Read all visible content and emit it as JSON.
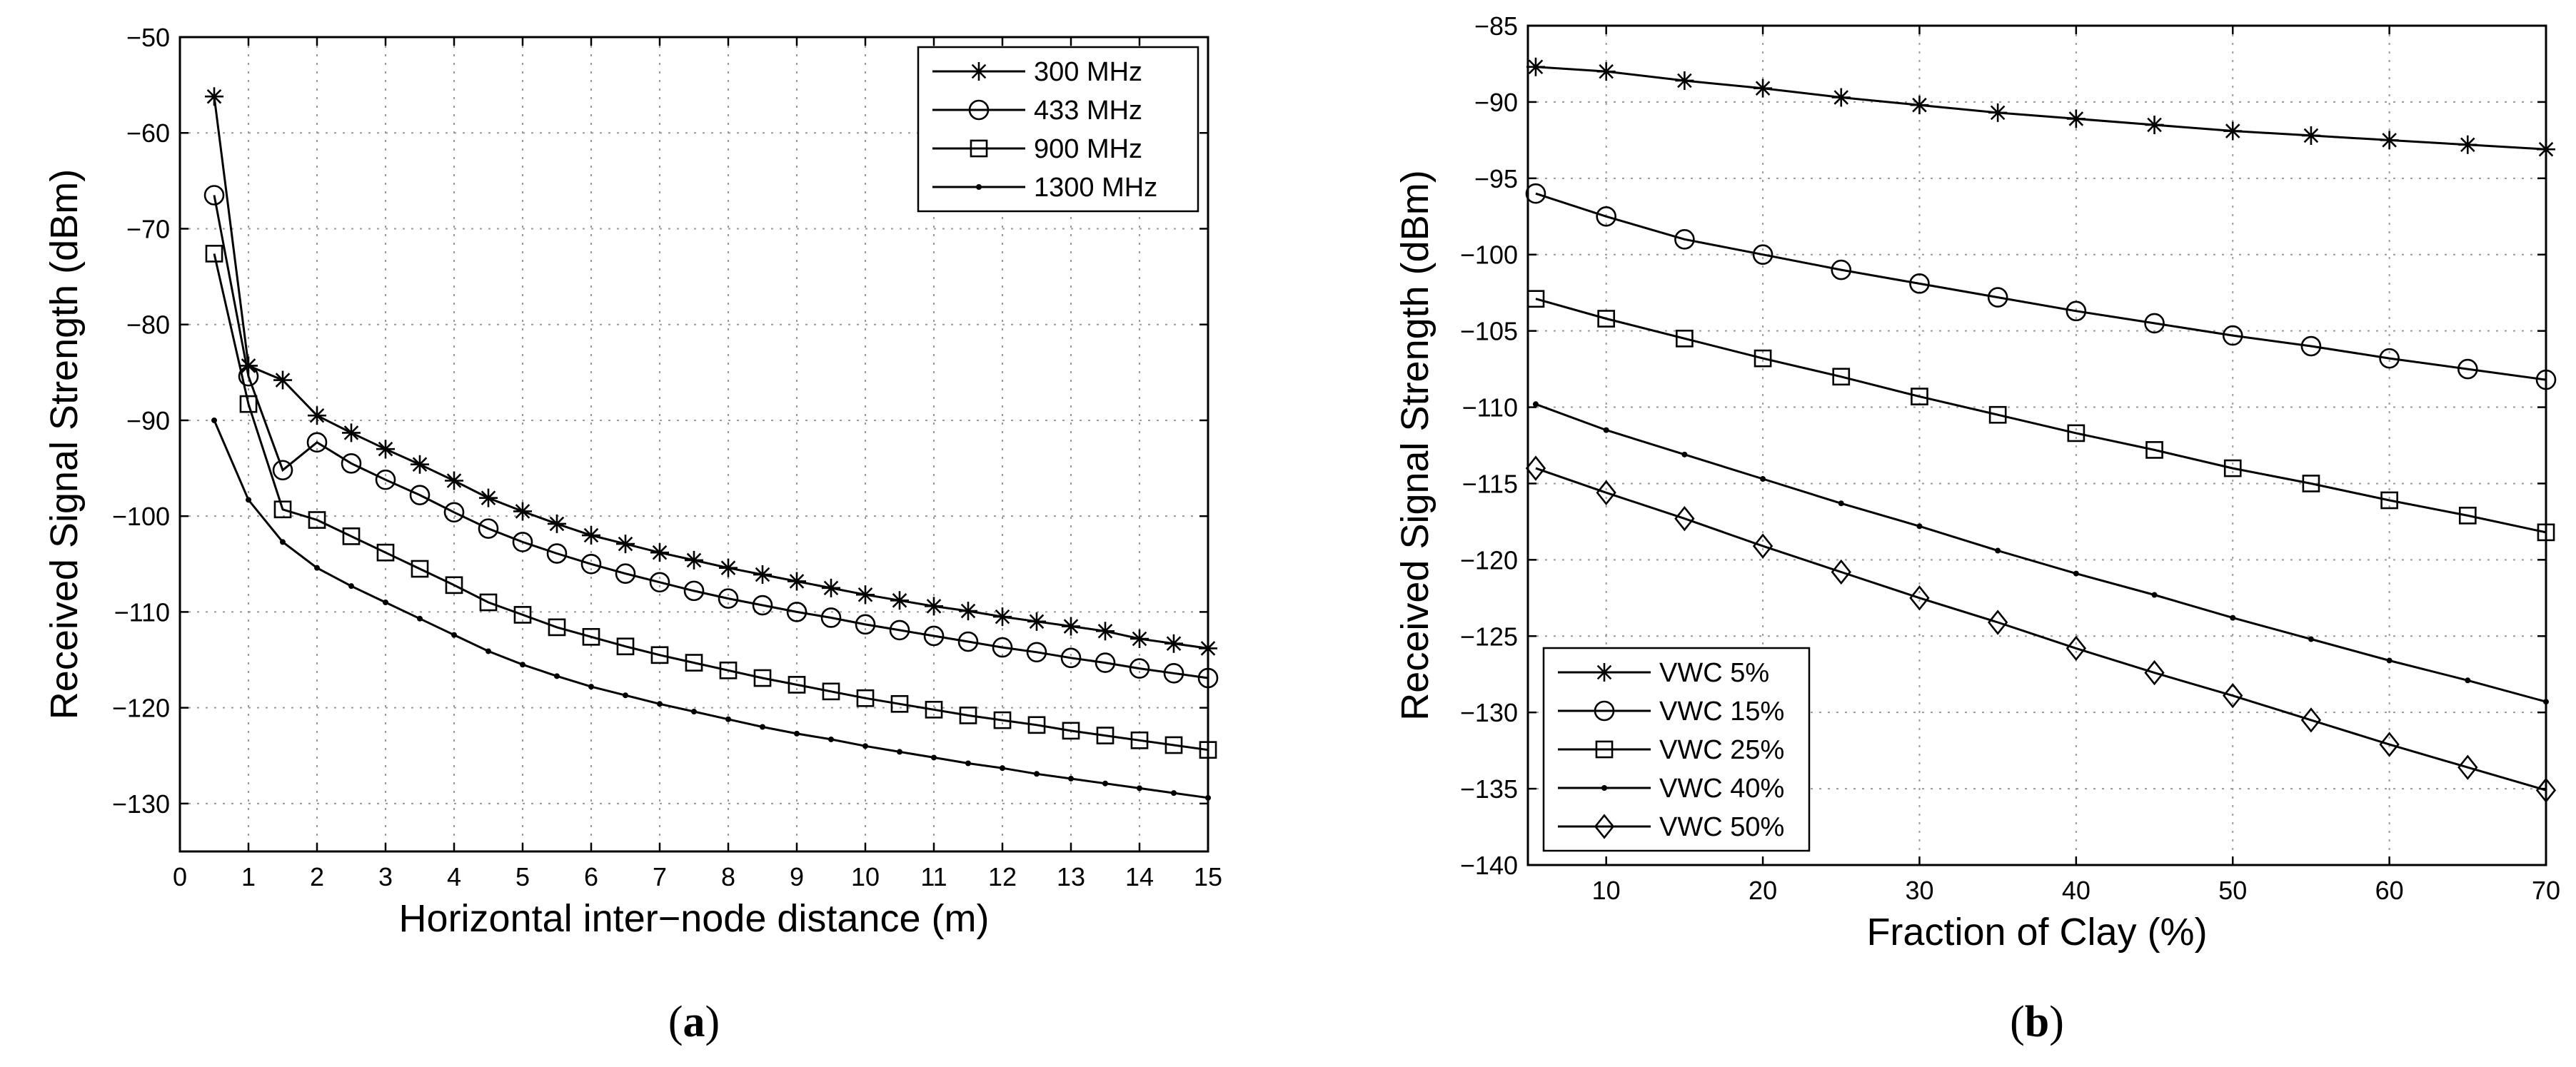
{
  "chart_data": [
    {
      "type": "line",
      "panel": "a",
      "caption_letter": "a",
      "title": "",
      "xlabel": "Horizontal inter−node distance (m)",
      "ylabel": "Received Signal Strength (dBm)",
      "xlim": [
        0,
        15
      ],
      "ylim": [
        -135,
        -50
      ],
      "grid": true,
      "legend_position": "top-right",
      "xticks": [
        0,
        1,
        2,
        3,
        4,
        5,
        6,
        7,
        8,
        9,
        10,
        11,
        12,
        13,
        14,
        15
      ],
      "xtick_labels": [
        "0",
        "1",
        "2",
        "3",
        "4",
        "5",
        "6",
        "7",
        "8",
        "9",
        "10",
        "11",
        "12",
        "13",
        "14",
        "15"
      ],
      "yticks": [
        -50,
        -60,
        -70,
        -80,
        -90,
        -100,
        -110,
        -120,
        -130
      ],
      "ytick_labels": [
        "−50",
        "−60",
        "−70",
        "−80",
        "−90",
        "−100",
        "−110",
        "−120",
        "−130"
      ],
      "x": [
        0.5,
        1,
        1.5,
        2,
        2.5,
        3,
        3.5,
        4,
        4.5,
        5,
        5.5,
        6,
        6.5,
        7,
        7.5,
        8,
        8.5,
        9,
        9.5,
        10,
        10.5,
        11,
        11.5,
        12,
        12.5,
        13,
        13.5,
        14,
        14.5,
        15
      ],
      "series": [
        {
          "name": "300 MHz",
          "marker": "star",
          "values": [
            -56.2,
            -84.3,
            -85.8,
            -89.5,
            -91.3,
            -93.0,
            -94.6,
            -96.3,
            -98.1,
            -99.5,
            -100.8,
            -102.0,
            -102.9,
            -103.8,
            -104.6,
            -105.4,
            -106.1,
            -106.8,
            -107.5,
            -108.2,
            -108.8,
            -109.4,
            -109.9,
            -110.5,
            -111.0,
            -111.5,
            -112.0,
            -112.8,
            -113.3,
            -113.8
          ]
        },
        {
          "name": "433 MHz",
          "marker": "circle",
          "values": [
            -66.5,
            -85.4,
            -95.2,
            -92.3,
            -94.5,
            -96.2,
            -97.8,
            -99.6,
            -101.3,
            -102.7,
            -103.9,
            -105.0,
            -106.0,
            -106.9,
            -107.8,
            -108.6,
            -109.3,
            -110.0,
            -110.6,
            -111.3,
            -111.9,
            -112.5,
            -113.1,
            -113.7,
            -114.2,
            -114.8,
            -115.3,
            -115.9,
            -116.4,
            -116.9
          ]
        },
        {
          "name": "900 MHz",
          "marker": "square",
          "values": [
            -72.6,
            -88.3,
            -99.3,
            -100.4,
            -102.1,
            -103.8,
            -105.5,
            -107.2,
            -109.0,
            -110.3,
            -111.6,
            -112.6,
            -113.6,
            -114.5,
            -115.3,
            -116.1,
            -116.9,
            -117.6,
            -118.3,
            -119.0,
            -119.6,
            -120.2,
            -120.8,
            -121.3,
            -121.8,
            -122.4,
            -122.9,
            -123.4,
            -123.9,
            -124.4
          ]
        },
        {
          "name": "1300 MHz",
          "marker": "dot",
          "values": [
            -90.0,
            -98.3,
            -102.7,
            -105.4,
            -107.3,
            -109.0,
            -110.7,
            -112.4,
            -114.1,
            -115.5,
            -116.7,
            -117.8,
            -118.7,
            -119.6,
            -120.4,
            -121.2,
            -122.0,
            -122.7,
            -123.3,
            -124.0,
            -124.6,
            -125.2,
            -125.8,
            -126.3,
            -126.9,
            -127.4,
            -127.9,
            -128.4,
            -128.9,
            -129.4
          ]
        }
      ]
    },
    {
      "type": "line",
      "panel": "b",
      "caption_letter": "b",
      "title": "",
      "xlabel": "Fraction of Clay (%)",
      "ylabel": "Received Signal Strength (dBm)",
      "xlim": [
        5,
        70
      ],
      "ylim": [
        -140,
        -85
      ],
      "grid": true,
      "legend_position": "bottom-left",
      "xticks": [
        10,
        20,
        30,
        40,
        50,
        60,
        70
      ],
      "xtick_labels": [
        "10",
        "20",
        "30",
        "40",
        "50",
        "60",
        "70"
      ],
      "yticks": [
        -85,
        -90,
        -95,
        -100,
        -105,
        -110,
        -115,
        -120,
        -125,
        -130,
        -135,
        -140
      ],
      "ytick_labels": [
        "−85",
        "−90",
        "−95",
        "−100",
        "−105",
        "−110",
        "−115",
        "−120",
        "−125",
        "−130",
        "−135",
        "−140"
      ],
      "x": [
        5.5,
        10,
        15,
        20,
        25,
        30,
        35,
        40,
        45,
        50,
        55,
        60,
        65,
        70
      ],
      "series": [
        {
          "name": "VWC 5%",
          "marker": "star",
          "values": [
            -87.7,
            -88.0,
            -88.6,
            -89.1,
            -89.7,
            -90.2,
            -90.7,
            -91.1,
            -91.5,
            -91.9,
            -92.2,
            -92.5,
            -92.8,
            -93.1
          ]
        },
        {
          "name": "VWC 15%",
          "marker": "circle",
          "values": [
            -96.0,
            -97.5,
            -99.0,
            -100.0,
            -101.0,
            -101.9,
            -102.8,
            -103.7,
            -104.5,
            -105.3,
            -106.0,
            -106.8,
            -107.5,
            -108.2
          ]
        },
        {
          "name": "VWC 25%",
          "marker": "square",
          "values": [
            -102.9,
            -104.2,
            -105.5,
            -106.8,
            -108.0,
            -109.3,
            -110.5,
            -111.7,
            -112.8,
            -114.0,
            -115.0,
            -116.1,
            -117.1,
            -118.2
          ]
        },
        {
          "name": "VWC 40%",
          "marker": "dot",
          "values": [
            -109.8,
            -111.5,
            -113.1,
            -114.7,
            -116.3,
            -117.8,
            -119.4,
            -120.9,
            -122.3,
            -123.8,
            -125.2,
            -126.6,
            -127.9,
            -129.3
          ]
        },
        {
          "name": "VWC 50%",
          "marker": "diamond",
          "values": [
            -114.0,
            -115.6,
            -117.3,
            -119.1,
            -120.8,
            -122.5,
            -124.1,
            -125.8,
            -127.4,
            -128.9,
            -130.5,
            -132.1,
            -133.6,
            -135.1
          ]
        }
      ]
    }
  ]
}
